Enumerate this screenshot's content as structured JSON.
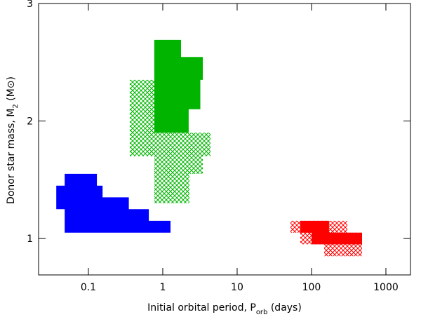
{
  "chart_data": {
    "type": "polygon",
    "xlabel": {
      "text": "Initial orbital period,  P",
      "sub": "orb",
      "after": " (days)"
    },
    "ylabel": {
      "text": "Donor star mass,  M",
      "sub": "2",
      "after": " (M⊙)"
    },
    "xscale": "log",
    "xlim": [
      0.0214,
      2140
    ],
    "ylim": [
      0.69,
      3
    ],
    "xticks": [
      0.1,
      1,
      10,
      100,
      1000
    ],
    "yticks": [
      1,
      2,
      3
    ],
    "regions": [
      {
        "color": "#00b400",
        "fill": "hatch",
        "x": [
          0.36,
          0.77,
          0.77,
          4.38,
          4.38,
          3.45,
          3.45,
          2.28,
          2.28,
          0.77,
          0.77,
          0.36
        ],
        "y": [
          2.35,
          2.35,
          1.9,
          1.9,
          1.7,
          1.7,
          1.55,
          1.55,
          1.3,
          1.3,
          1.7,
          1.7
        ]
      },
      {
        "color": "#00b400",
        "fill": "solid",
        "x": [
          0.77,
          1.76,
          1.76,
          3.45,
          3.45,
          3.2,
          3.2,
          2.23,
          2.23,
          0.77
        ],
        "y": [
          2.69,
          2.69,
          2.545,
          2.545,
          2.35,
          2.35,
          2.1,
          2.1,
          1.9,
          1.9
        ]
      },
      {
        "color": "#0000ff",
        "fill": "solid",
        "x": [
          0.048,
          0.13,
          0.13,
          0.155,
          0.155,
          0.35,
          0.35,
          0.65,
          0.65,
          1.27,
          1.27,
          0.048,
          0.048,
          0.037,
          0.037,
          0.048
        ],
        "y": [
          1.55,
          1.55,
          1.45,
          1.45,
          1.35,
          1.35,
          1.25,
          1.25,
          1.15,
          1.15,
          1.05,
          1.05,
          1.25,
          1.25,
          1.45,
          1.45
        ]
      },
      {
        "color": "#ff0000",
        "fill": "hatch",
        "x": [
          52,
          303,
          303,
          478,
          478,
          148,
          148,
          70.6,
          70.6,
          52
        ],
        "y": [
          1.15,
          1.15,
          1.05,
          1.05,
          0.85,
          0.85,
          0.95,
          0.95,
          1.05,
          1.05
        ]
      },
      {
        "color": "#ff0000",
        "fill": "solid",
        "x": [
          70.6,
          172,
          172,
          478,
          478,
          100,
          100,
          70.6
        ],
        "y": [
          1.15,
          1.15,
          1.05,
          1.05,
          0.95,
          0.95,
          1.05,
          1.05
        ]
      }
    ]
  }
}
